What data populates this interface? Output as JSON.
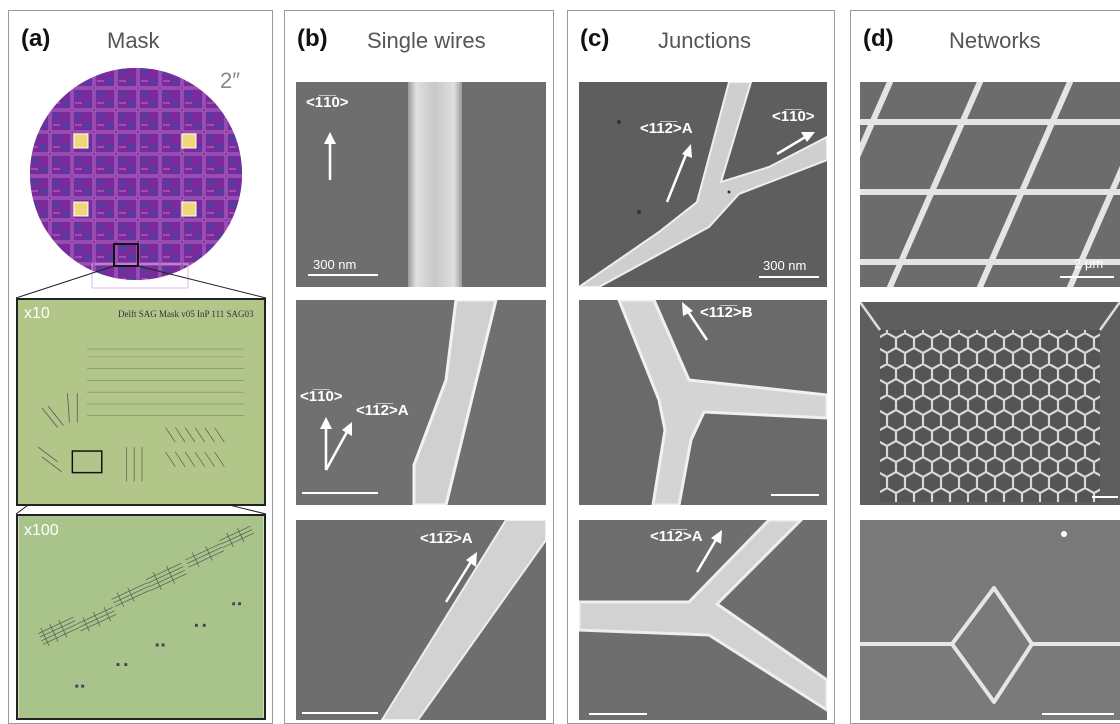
{
  "panels": {
    "a": {
      "label": "(a)",
      "title": "Mask",
      "wafer_size": "2″",
      "zoom1": "x10",
      "zoom2": "x100",
      "mask_text": "Delft SAG Mask v05 InP 111 SAG03"
    },
    "b": {
      "label": "(b)",
      "title": "Single wires",
      "img1": {
        "dir": "<1̅1̅0>",
        "scale": "300 nm"
      },
      "img2": {
        "dir1": "<1̅1̅0>",
        "dir2": "<11̅2̅>A"
      },
      "img3": {
        "dir": "<11̅2̅>A"
      }
    },
    "c": {
      "label": "(c)",
      "title": "Junctions",
      "img1": {
        "dir1": "<11̅2̅>A",
        "dir2": "<1̅1̅0>",
        "scale": "300 nm"
      },
      "img2": {
        "dir": "<11̅2̅>B"
      },
      "img3": {
        "dir": "<11̅2̅>A"
      }
    },
    "d": {
      "label": "(d)",
      "title": "Networks",
      "img1": {
        "scale": "2 μm"
      }
    }
  }
}
